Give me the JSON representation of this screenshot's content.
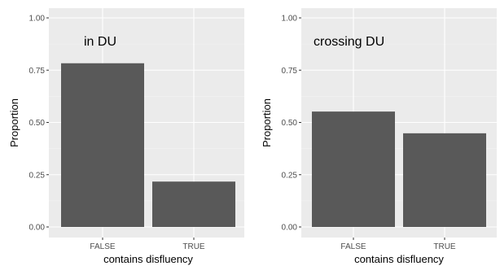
{
  "colors": {
    "panel_bg": "#ebebeb",
    "grid_major": "#ffffff",
    "grid_minor": "#f5f5f5",
    "bar_fill": "#595959",
    "tick_mark": "#333333"
  },
  "chart_data": [
    {
      "type": "bar",
      "annotation": "in DU",
      "categories": [
        "FALSE",
        "TRUE"
      ],
      "values": [
        0.783,
        0.217
      ],
      "xlabel": "contains disfluency",
      "ylabel": "Proportion",
      "ylim": [
        0,
        1
      ],
      "yticks": [
        0,
        0.25,
        0.5,
        0.75,
        1
      ],
      "ytick_labels": [
        "0.00",
        "0.25",
        "0.50",
        "0.75",
        "1.00"
      ],
      "grid": true
    },
    {
      "type": "bar",
      "annotation": "crossing DU",
      "categories": [
        "FALSE",
        "TRUE"
      ],
      "values": [
        0.552,
        0.448
      ],
      "xlabel": "contains disfluency",
      "ylabel": "Proportion",
      "ylim": [
        0,
        1
      ],
      "yticks": [
        0,
        0.25,
        0.5,
        0.75,
        1
      ],
      "ytick_labels": [
        "0.00",
        "0.25",
        "0.50",
        "0.75",
        "1.00"
      ],
      "grid": true
    }
  ]
}
